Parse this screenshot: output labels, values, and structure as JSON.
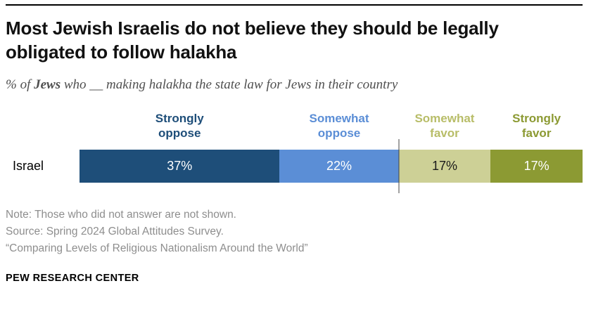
{
  "meta": {
    "brand": "PEW RESEARCH CENTER"
  },
  "title": "Most Jewish Israelis do not believe they should be legally obligated to follow halakha",
  "subtitle": {
    "prefix": "% of ",
    "bold": "Jews",
    "suffix": " who __ making halakha the state law for Jews in their country"
  },
  "notes": [
    "Note: Those who did not answer are not shown.",
    "Source: Spring 2024 Global Attitudes Survey.",
    "“Comparing Levels of Religious Nationalism Around the World”"
  ],
  "chart_data": {
    "type": "bar",
    "subtype": "horizontal-stacked",
    "row_label": "Israel",
    "categories": [
      "Strongly oppose",
      "Somewhat oppose",
      "Somewhat favor",
      "Strongly favor"
    ],
    "values": [
      37,
      22,
      17,
      17
    ],
    "labels": [
      "37%",
      "22%",
      "17%",
      "17%"
    ],
    "colors": [
      "#1e4e79",
      "#5b8ed6",
      "#cdd096",
      "#8c9a33"
    ],
    "header_colors": [
      "#1e4e79",
      "#5b8ed6",
      "#b8bd68",
      "#8c9a33"
    ],
    "label_text_colors": [
      "#ffffff",
      "#ffffff",
      "#1a1a1a",
      "#ffffff"
    ],
    "divider_between": [
      "Somewhat oppose",
      "Somewhat favor"
    ],
    "legend_position": "above-bar",
    "grid": false
  }
}
